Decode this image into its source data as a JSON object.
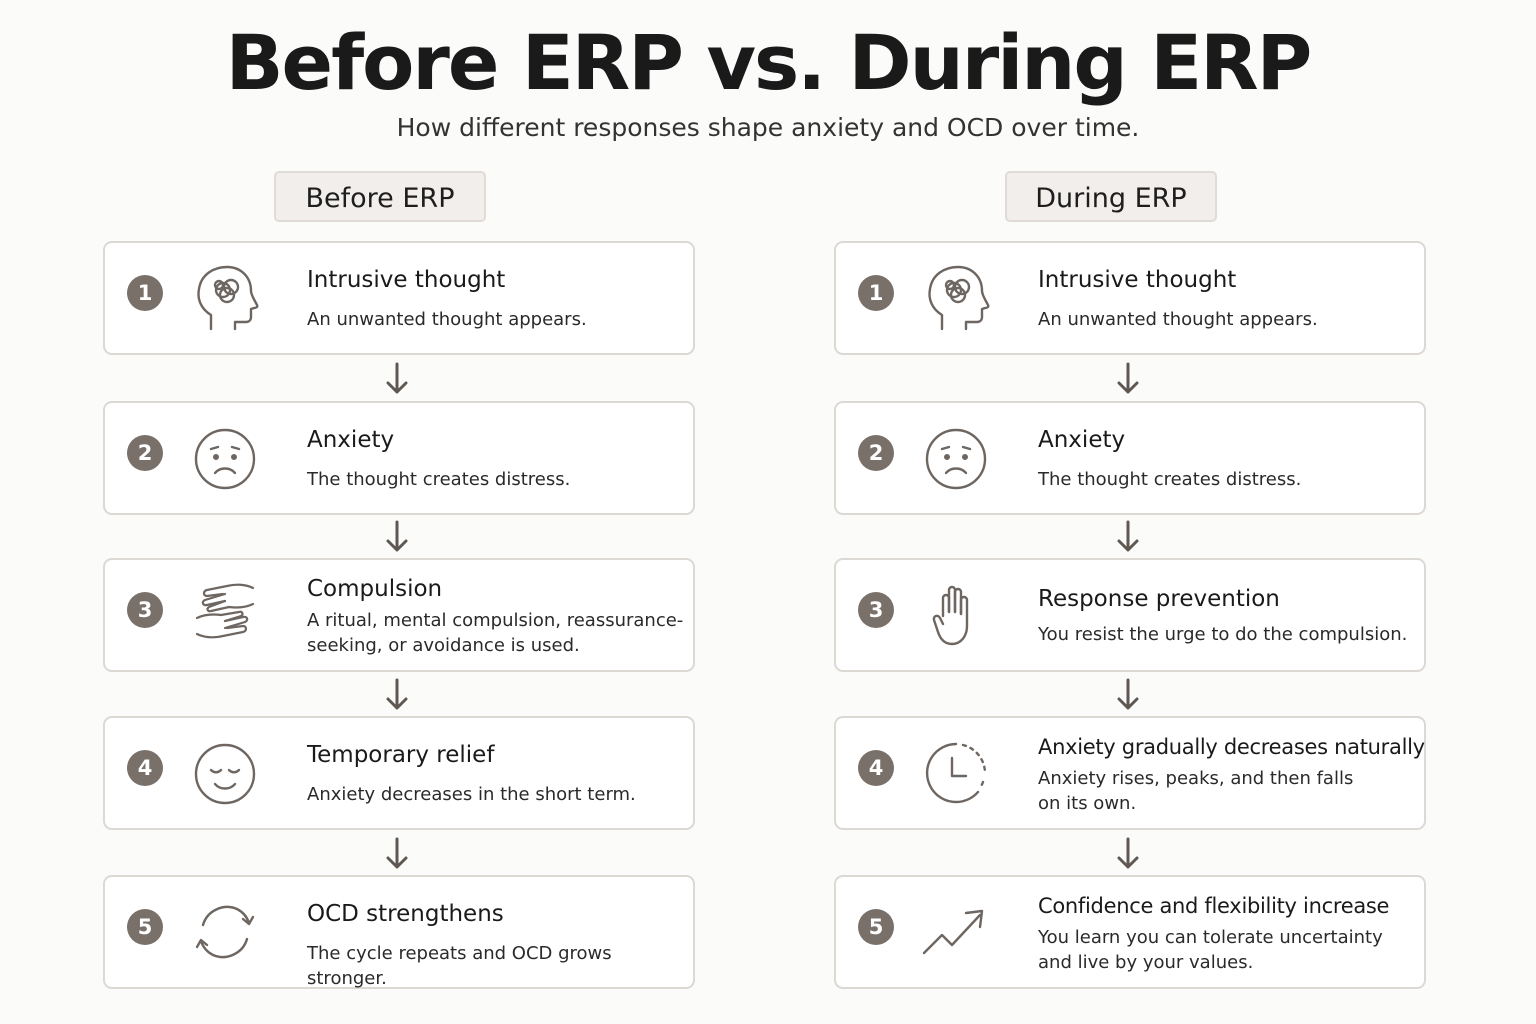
{
  "title": "Before ERP vs. During ERP",
  "subtitle": "How different responses shape anxiety and OCD over time.",
  "colors": {
    "badge": "#7a706a",
    "icon_stroke": "#6e6661",
    "card_border": "#dcd8d4",
    "label_bg": "#f1eeeb"
  },
  "before": {
    "label": "Before ERP",
    "steps": [
      {
        "num": "1",
        "icon": "head-brain-icon",
        "title": "Intrusive thought",
        "desc": "An unwanted thought appears."
      },
      {
        "num": "2",
        "icon": "sad-face-icon",
        "title": "Anxiety",
        "desc": "The thought creates distress."
      },
      {
        "num": "3",
        "icon": "washing-hands-icon",
        "title": "Compulsion",
        "desc": "A ritual, mental compulsion, reassurance-seeking, or avoidance is used."
      },
      {
        "num": "4",
        "icon": "relieved-face-icon",
        "title": "Temporary relief",
        "desc": "Anxiety decreases in the short term."
      },
      {
        "num": "5",
        "icon": "cycle-arrows-icon",
        "title": "OCD strengthens",
        "desc": "The cycle repeats and OCD grows stronger."
      }
    ]
  },
  "during": {
    "label": "During ERP",
    "steps": [
      {
        "num": "1",
        "icon": "head-brain-icon",
        "title": "Intrusive thought",
        "desc": "An unwanted thought appears."
      },
      {
        "num": "2",
        "icon": "sad-face-icon",
        "title": "Anxiety",
        "desc": "The thought creates distress."
      },
      {
        "num": "3",
        "icon": "raised-hand-icon",
        "title": "Response prevention",
        "desc": "You resist the urge to do the compulsion."
      },
      {
        "num": "4",
        "icon": "clock-icon",
        "title": "Anxiety gradually decreases naturally",
        "desc": "Anxiety rises, peaks, and then falls on its own."
      },
      {
        "num": "5",
        "icon": "trend-up-icon",
        "title": "Confidence and flexibility increase",
        "desc": "You learn you can tolerate uncertainty and live by your values."
      }
    ]
  }
}
